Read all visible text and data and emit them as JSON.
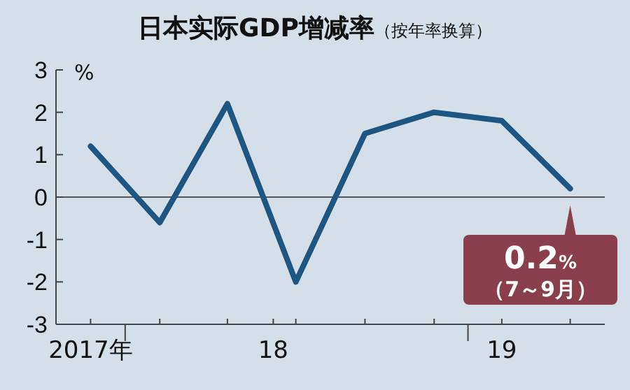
{
  "chart_data": {
    "type": "line",
    "title": "日本实际GDP增减率",
    "subtitle": "（按年率换算）",
    "ylabel": "%",
    "x": [
      "2017-10",
      "2018-01",
      "2018-04",
      "2018-07",
      "2018-10",
      "2019-01",
      "2019-04",
      "2019-07"
    ],
    "series": [
      {
        "color": "#1d5583",
        "values": [
          1.2,
          -0.6,
          2.2,
          -2.0,
          1.5,
          2.0,
          1.8,
          0.2
        ]
      }
    ],
    "xlim": [
      "2017-08-16",
      "2019-08-16"
    ],
    "xticks": [
      {
        "value": "2017-10",
        "label": "2017年"
      },
      {
        "value": "2017-11-16",
        "label": null
      },
      {
        "value": "2018-01",
        "label": null
      },
      {
        "value": "2018-04",
        "label": null
      },
      {
        "value": "2018-06",
        "label": "18"
      },
      {
        "value": "2018-07",
        "label": null
      },
      {
        "value": "2018-10",
        "label": null
      },
      {
        "value": "2019-01",
        "label": null
      },
      {
        "value": "2019-02-15",
        "label": null
      },
      {
        "value": "2019-04",
        "label": "19"
      },
      {
        "value": "2019-07",
        "label": null
      }
    ],
    "ylim": [
      -3,
      3
    ],
    "yticks": [
      -3,
      -2,
      -1,
      0,
      1,
      2,
      3
    ],
    "ref_lines": [
      {
        "axis": "y",
        "value": 0,
        "color": "#555555"
      }
    ],
    "annotations": [
      {
        "text": "0.2%",
        "x": "2019-07",
        "y": 0.2
      },
      "（7～9月）"
    ],
    "grid": false,
    "marker": "none",
    "line_style": "solid"
  }
}
